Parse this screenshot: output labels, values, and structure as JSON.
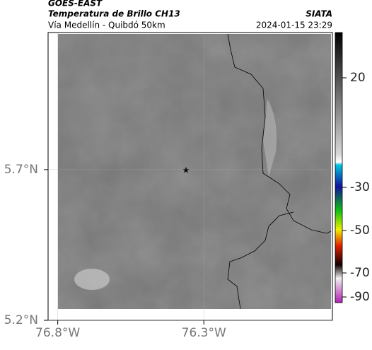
{
  "header": {
    "title": "GOES-EAST",
    "subtitle": "Temperatura de Brillo CH13",
    "source": "SIATA",
    "region": "Vía Medellín - Quibdó 50km",
    "timestamp": "2024-01-15 23:29"
  },
  "chart_data": {
    "type": "map",
    "xlim": [
      -76.833,
      -75.86
    ],
    "ylim": [
      5.2,
      6.155
    ],
    "xticks": [
      {
        "value": -76.8,
        "label": "76.8°W"
      },
      {
        "value": -76.3,
        "label": "76.3°W"
      }
    ],
    "yticks": [
      {
        "value": 5.7,
        "label": "5.7°N"
      },
      {
        "value": 5.2,
        "label": "5.2°N"
      }
    ],
    "grid": true
  },
  "colorbar": {
    "ticks": [
      20,
      -30,
      -50,
      -70,
      -90
    ]
  }
}
